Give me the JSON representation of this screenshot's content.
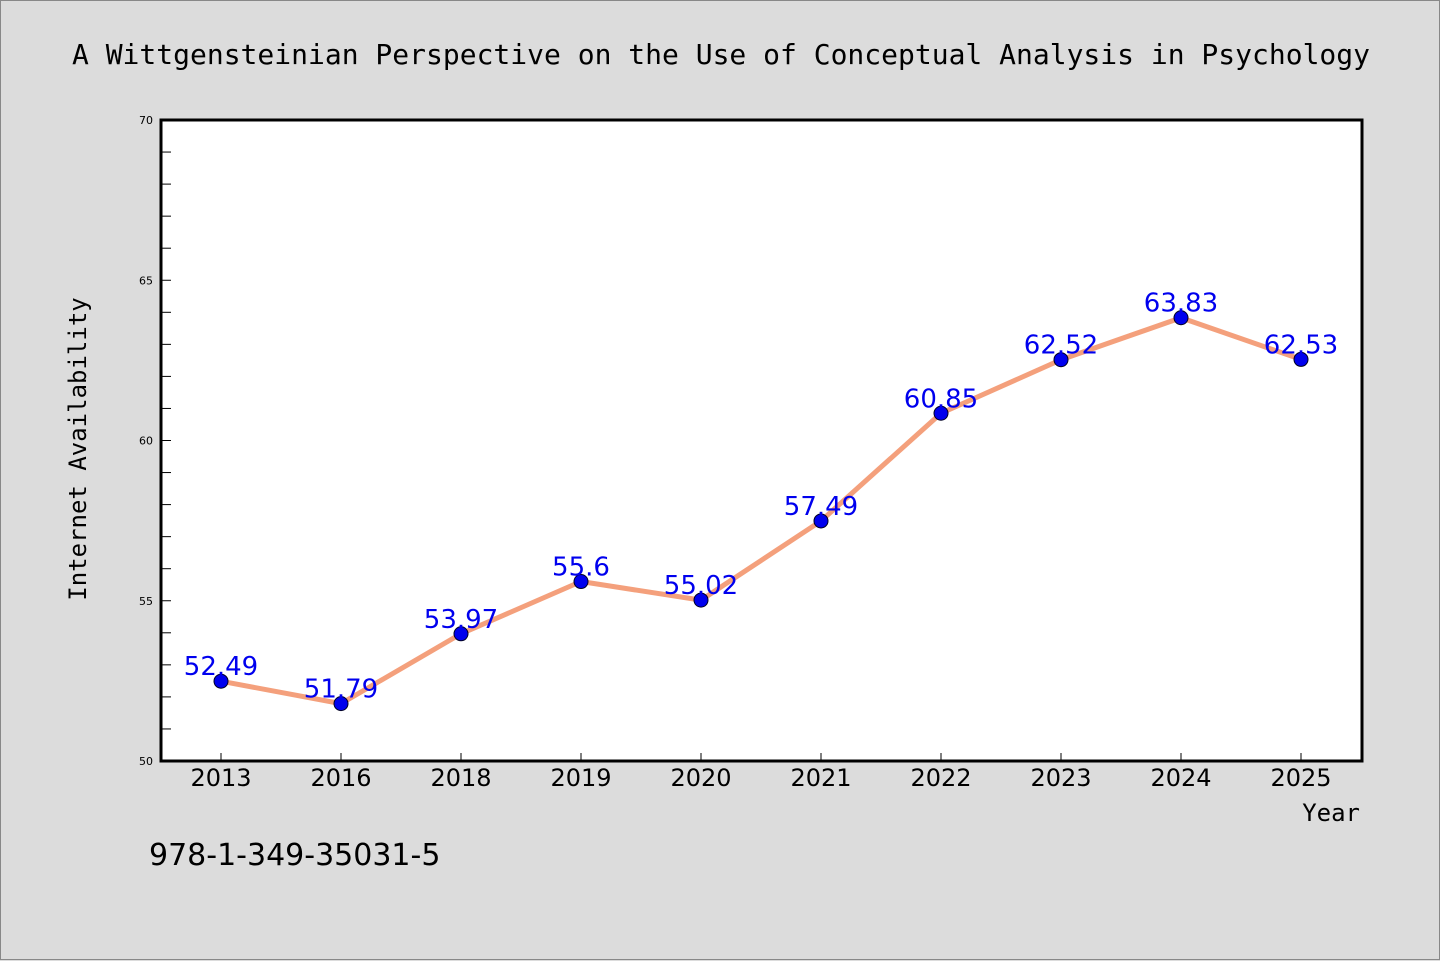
{
  "page_title": "A Wittgensteinian Perspective on the Use of Conceptual Analysis in Psychology",
  "footer_code": "978-1-349-35031-5",
  "colors": {
    "background": "#dcdcdc",
    "plot_background": "#ffffff",
    "line": "#f4a07c",
    "marker": "#0000ee",
    "label": "#0000ee"
  },
  "chart_data": {
    "type": "line",
    "title": "A Wittgensteinian Perspective on the Use of Conceptual Analysis in Psychology",
    "xlabel": "Year",
    "ylabel": "Internet Availability",
    "categories": [
      "2013",
      "2016",
      "2018",
      "2019",
      "2020",
      "2021",
      "2022",
      "2023",
      "2024",
      "2025"
    ],
    "series": [
      {
        "values": [
          52.49,
          51.79,
          53.97,
          55.6,
          55.02,
          57.49,
          60.85,
          62.52,
          63.83,
          62.53
        ],
        "data_labels": [
          "52.49",
          "51.79",
          "53.97",
          "55.6",
          "55.02",
          "57.49",
          "60.85",
          "62.52",
          "63.83",
          "62.53"
        ]
      }
    ],
    "ylim": [
      50,
      70
    ],
    "yticks": [
      "50",
      "55",
      "60",
      "65",
      "70"
    ],
    "grid": false,
    "legend": "none"
  }
}
